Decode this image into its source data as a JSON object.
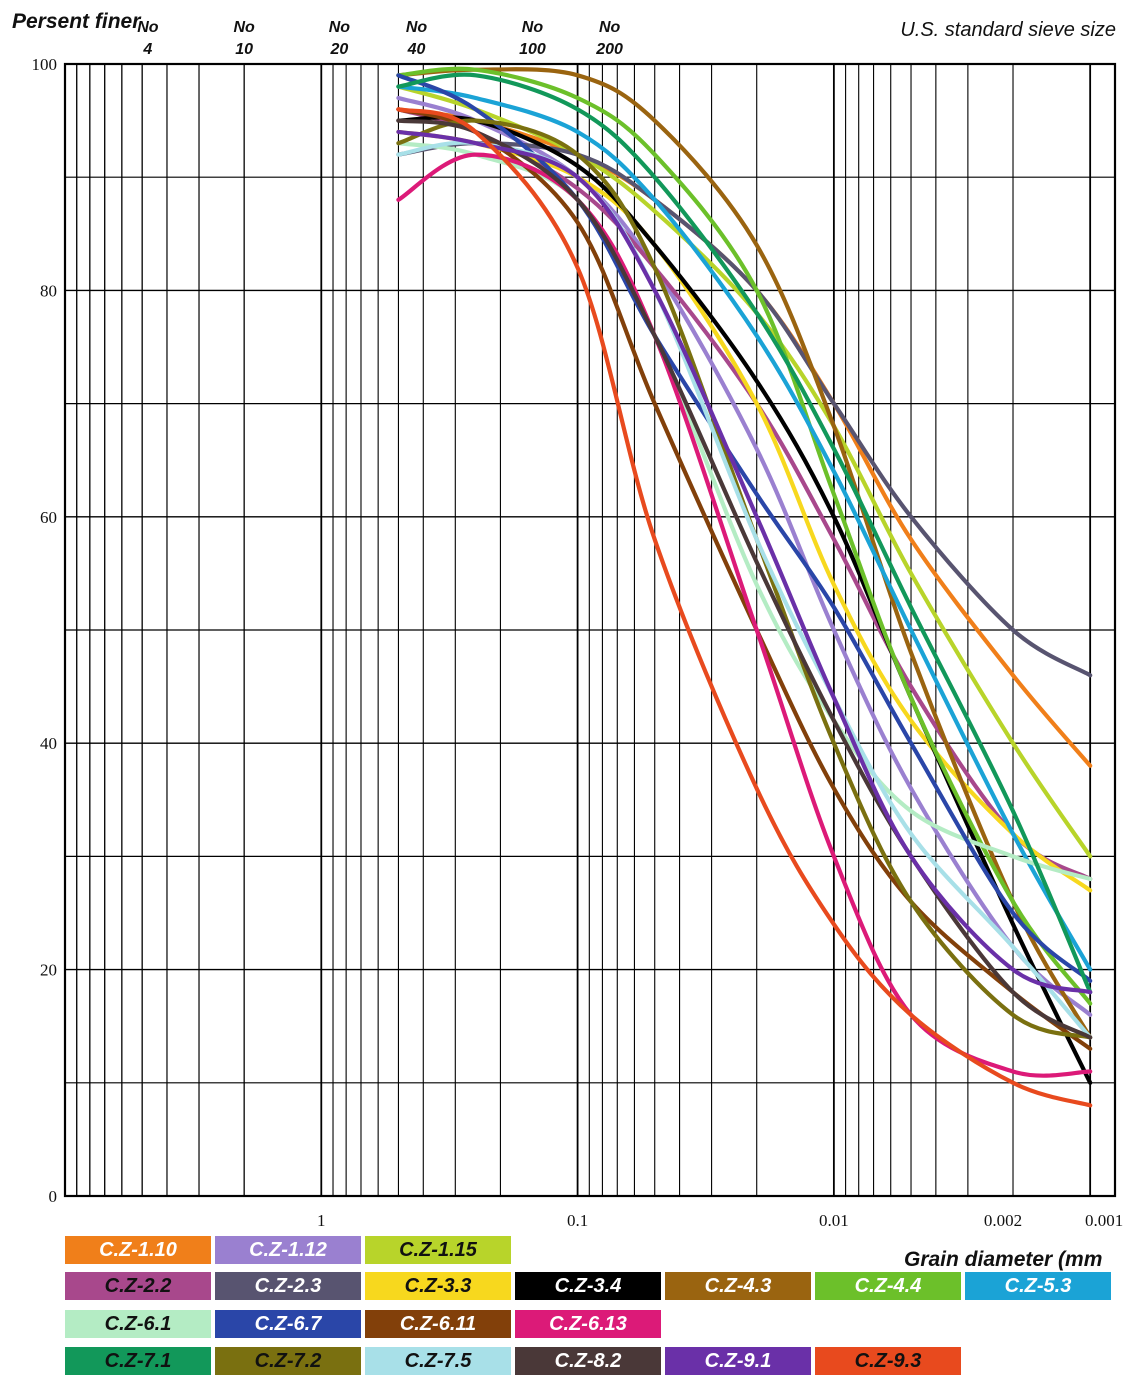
{
  "chart_data": {
    "type": "line",
    "ylabel": "Persent finer",
    "xlabel": "Grain diameter (mm",
    "sieve_title": "U.S. standard sieve size",
    "x_scale": "log-reversed",
    "xlim": [
      10,
      0.0008
    ],
    "ylim": [
      0,
      100
    ],
    "grid": true,
    "legend_position": "bottom",
    "y_ticks": [
      "0",
      "20",
      "40",
      "60",
      "80",
      "100"
    ],
    "x_ticks": [
      {
        "value": 1,
        "label": "1"
      },
      {
        "value": 0.1,
        "label": "0.1"
      },
      {
        "value": 0.01,
        "label": "0.01"
      },
      {
        "value": 0.002,
        "label": "0.002"
      },
      {
        "value": 0.001,
        "label": "0.001"
      }
    ],
    "sieves": [
      {
        "value": 4.75,
        "top": "No",
        "bottom": "4"
      },
      {
        "value": 2.0,
        "top": "No",
        "bottom": "10"
      },
      {
        "value": 0.85,
        "top": "No",
        "bottom": "20"
      },
      {
        "value": 0.425,
        "top": "No",
        "bottom": "40"
      },
      {
        "value": 0.15,
        "top": "No",
        "bottom": "100"
      },
      {
        "value": 0.075,
        "top": "No",
        "bottom": "200"
      }
    ],
    "series": [
      {
        "name": "C.Z-1.10",
        "color": "#f07f1a",
        "x": [
          0.5,
          0.25,
          0.1,
          0.05,
          0.02,
          0.01,
          0.005,
          0.002,
          0.001
        ],
        "y": [
          96,
          95,
          92,
          88,
          80,
          70,
          58,
          46,
          38
        ]
      },
      {
        "name": "C.Z-1.12",
        "color": "#9a80d0",
        "x": [
          0.5,
          0.25,
          0.1,
          0.05,
          0.02,
          0.01,
          0.005,
          0.002,
          0.001
        ],
        "y": [
          97,
          95,
          90,
          82,
          66,
          50,
          36,
          22,
          16
        ]
      },
      {
        "name": "C.Z-1.15",
        "color": "#b8d42a",
        "x": [
          0.5,
          0.25,
          0.1,
          0.05,
          0.02,
          0.01,
          0.005,
          0.002,
          0.001
        ],
        "y": [
          98,
          96,
          92,
          87,
          78,
          68,
          55,
          40,
          30
        ]
      },
      {
        "name": "C.Z-2.2",
        "color": "#a8488c",
        "x": [
          0.5,
          0.25,
          0.1,
          0.05,
          0.02,
          0.01,
          0.005,
          0.002,
          0.001
        ],
        "y": [
          96,
          94,
          89,
          82,
          70,
          58,
          45,
          32,
          28
        ]
      },
      {
        "name": "C.Z-2.3",
        "color": "#585470",
        "x": [
          0.5,
          0.25,
          0.1,
          0.05,
          0.02,
          0.01,
          0.005,
          0.002,
          0.001
        ],
        "y": [
          92,
          93,
          92,
          88,
          80,
          70,
          60,
          50,
          46
        ]
      },
      {
        "name": "C.Z-3.3",
        "color": "#f7d81e",
        "x": [
          0.5,
          0.25,
          0.1,
          0.05,
          0.02,
          0.01,
          0.005,
          0.002,
          0.001
        ],
        "y": [
          94,
          93,
          90,
          84,
          70,
          54,
          42,
          32,
          27
        ]
      },
      {
        "name": "C.Z-3.4",
        "color": "#000000",
        "x": [
          0.5,
          0.25,
          0.1,
          0.05,
          0.02,
          0.01,
          0.005,
          0.002,
          0.001
        ],
        "y": [
          95,
          95,
          91,
          84,
          72,
          60,
          44,
          24,
          10
        ]
      },
      {
        "name": "C.Z-4.3",
        "color": "#9a6410",
        "x": [
          0.5,
          0.25,
          0.1,
          0.05,
          0.02,
          0.01,
          0.005,
          0.002,
          0.001
        ],
        "y": [
          99,
          99.5,
          99,
          95,
          84,
          68,
          48,
          26,
          14
        ]
      },
      {
        "name": "C.Z-4.4",
        "color": "#6cc02a",
        "x": [
          0.5,
          0.25,
          0.1,
          0.05,
          0.02,
          0.01,
          0.005,
          0.002,
          0.001
        ],
        "y": [
          99,
          99.5,
          97,
          92,
          80,
          62,
          44,
          26,
          17
        ]
      },
      {
        "name": "C.Z-5.3",
        "color": "#1ba3d6",
        "x": [
          0.5,
          0.25,
          0.1,
          0.05,
          0.02,
          0.01,
          0.005,
          0.002,
          0.001
        ],
        "y": [
          98,
          97,
          94,
          88,
          76,
          64,
          50,
          32,
          20
        ]
      },
      {
        "name": "C.Z-6.1",
        "color": "#b4ecc4",
        "x": [
          0.5,
          0.25,
          0.1,
          0.05,
          0.02,
          0.01,
          0.005,
          0.002,
          0.001
        ],
        "y": [
          93,
          92,
          88,
          76,
          54,
          42,
          34,
          30,
          28
        ]
      },
      {
        "name": "C.Z-6.7",
        "color": "#2a46a8",
        "x": [
          0.5,
          0.25,
          0.1,
          0.05,
          0.02,
          0.01,
          0.005,
          0.002,
          0.001
        ],
        "y": [
          99,
          96,
          88,
          76,
          62,
          52,
          40,
          25,
          19
        ]
      },
      {
        "name": "C.Z-6.11",
        "color": "#82400a",
        "x": [
          0.5,
          0.25,
          0.1,
          0.05,
          0.02,
          0.01,
          0.005,
          0.002,
          0.001
        ],
        "y": [
          96,
          94,
          86,
          70,
          50,
          36,
          26,
          18,
          13
        ]
      },
      {
        "name": "C.Z-6.13",
        "color": "#dc1a78",
        "x": [
          0.5,
          0.25,
          0.1,
          0.05,
          0.02,
          0.01,
          0.005,
          0.002,
          0.001
        ],
        "y": [
          88,
          92,
          88,
          76,
          50,
          30,
          16,
          11,
          11
        ]
      },
      {
        "name": "C.Z-7.1",
        "color": "#12985a",
        "x": [
          0.5,
          0.25,
          0.1,
          0.05,
          0.02,
          0.01,
          0.005,
          0.002,
          0.001
        ],
        "y": [
          98,
          99,
          96,
          90,
          78,
          66,
          52,
          34,
          18
        ]
      },
      {
        "name": "C.Z-7.2",
        "color": "#7a7010",
        "x": [
          0.5,
          0.25,
          0.1,
          0.05,
          0.02,
          0.01,
          0.005,
          0.002,
          0.001
        ],
        "y": [
          93,
          95,
          92,
          82,
          58,
          40,
          26,
          16,
          14
        ]
      },
      {
        "name": "C.Z-7.5",
        "color": "#a8e0e8",
        "x": [
          0.5,
          0.25,
          0.1,
          0.05,
          0.02,
          0.01,
          0.005,
          0.002,
          0.001
        ],
        "y": [
          92,
          93,
          90,
          80,
          58,
          44,
          32,
          22,
          14
        ]
      },
      {
        "name": "C.Z-8.2",
        "color": "#4a3838",
        "x": [
          0.5,
          0.25,
          0.1,
          0.05,
          0.02,
          0.01,
          0.005,
          0.002,
          0.001
        ],
        "y": [
          95,
          94,
          88,
          76,
          56,
          42,
          30,
          18,
          14
        ]
      },
      {
        "name": "C.Z-9.1",
        "color": "#6a30a8",
        "x": [
          0.5,
          0.25,
          0.1,
          0.05,
          0.02,
          0.01,
          0.005,
          0.002,
          0.001
        ],
        "y": [
          94,
          93,
          90,
          80,
          60,
          44,
          30,
          20,
          18
        ]
      },
      {
        "name": "C.Z-9.3",
        "color": "#e84a1e",
        "x": [
          0.5,
          0.25,
          0.1,
          0.05,
          0.02,
          0.01,
          0.005,
          0.002,
          0.001
        ],
        "y": [
          96,
          94,
          82,
          58,
          36,
          24,
          16,
          10,
          8
        ]
      }
    ]
  }
}
